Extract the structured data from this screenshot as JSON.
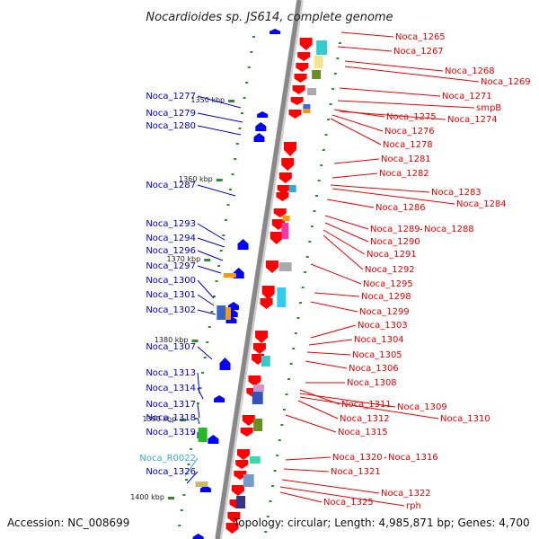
{
  "title": "Nocardioides sp. JS614, complete genome",
  "accession": "Accession: NC_008699",
  "topology": "Topology: circular; Length: 4,985,871 bp; Genes: 4,700",
  "colors": {
    "left_label": "#0000cc",
    "rna_label": "#33aacc",
    "right_label": "#ee0000",
    "backbone": "#888888"
  },
  "kbp_ticks": [
    "1350 kbp",
    "1360 kbp",
    "1370 kbp",
    "1380 kbp",
    "1390 kbp",
    "1400 kbp"
  ],
  "left_genes": [
    {
      "label": "Noca_1277",
      "type": "gene"
    },
    {
      "label": "Noca_1279",
      "type": "gene"
    },
    {
      "label": "Noca_1280",
      "type": "gene"
    },
    {
      "label": "Noca_1287",
      "type": "gene"
    },
    {
      "label": "Noca_1293",
      "type": "gene"
    },
    {
      "label": "Noca_1294",
      "type": "gene"
    },
    {
      "label": "Noca_1296",
      "type": "gene"
    },
    {
      "label": "Noca_1297",
      "type": "gene"
    },
    {
      "label": "Noca_1300",
      "type": "gene"
    },
    {
      "label": "Noca_1301",
      "type": "gene"
    },
    {
      "label": "Noca_1302",
      "type": "gene"
    },
    {
      "label": "Noca_1307",
      "type": "gene"
    },
    {
      "label": "Noca_1313",
      "type": "gene"
    },
    {
      "label": "Noca_1314",
      "type": "gene"
    },
    {
      "label": "Noca_1317",
      "type": "gene"
    },
    {
      "label": "Noca_1318",
      "type": "gene"
    },
    {
      "label": "Noca_1319",
      "type": "gene"
    },
    {
      "label": "Noca_R0022",
      "type": "rna"
    },
    {
      "label": "Noca_1326",
      "type": "gene"
    }
  ],
  "right_genes": [
    {
      "label": "Noca_1265"
    },
    {
      "label": "Noca_1267"
    },
    {
      "label": "Noca_1268"
    },
    {
      "label": "Noca_1269"
    },
    {
      "label": "Noca_1271"
    },
    {
      "label": "smpB"
    },
    {
      "label": "Noca_1275"
    },
    {
      "label": "Noca_1274"
    },
    {
      "label": "Noca_1276"
    },
    {
      "label": "Noca_1278"
    },
    {
      "label": "Noca_1281"
    },
    {
      "label": "Noca_1282"
    },
    {
      "label": "Noca_1283"
    },
    {
      "label": "Noca_1284"
    },
    {
      "label": "Noca_1286"
    },
    {
      "label": "Noca_1289"
    },
    {
      "label": "Noca_1288"
    },
    {
      "label": "Noca_1290"
    },
    {
      "label": "Noca_1291"
    },
    {
      "label": "Noca_1292"
    },
    {
      "label": "Noca_1295"
    },
    {
      "label": "Noca_1298"
    },
    {
      "label": "Noca_1299"
    },
    {
      "label": "Noca_1303"
    },
    {
      "label": "Noca_1304"
    },
    {
      "label": "Noca_1305"
    },
    {
      "label": "Noca_1306"
    },
    {
      "label": "Noca_1308"
    },
    {
      "label": "Noca_1311"
    },
    {
      "label": "Noca_1309"
    },
    {
      "label": "Noca_1310"
    },
    {
      "label": "Noca_1312"
    },
    {
      "label": "Noca_1315"
    },
    {
      "label": "Noca_1320"
    },
    {
      "label": "Noca_1316"
    },
    {
      "label": "Noca_1321"
    },
    {
      "label": "Noca_1322"
    },
    {
      "label": "rph"
    },
    {
      "label": "Noca_1325"
    }
  ]
}
